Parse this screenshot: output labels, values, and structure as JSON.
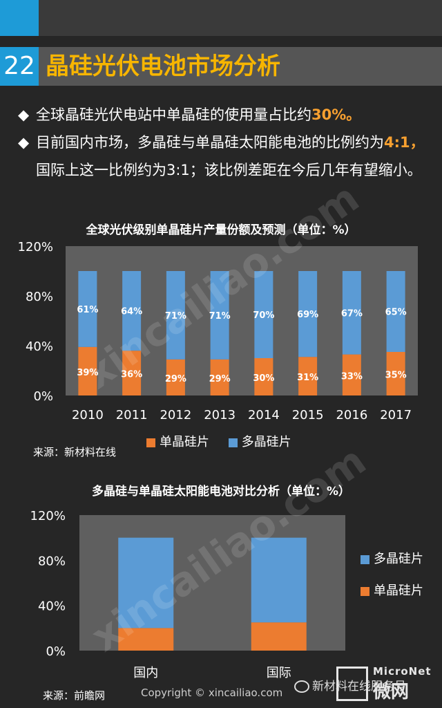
{
  "header": {
    "page_number": "22",
    "title": "晶硅光伏电池市场分析"
  },
  "bullets": {
    "b1_text": "全球晶硅光伏电站中单晶硅的使用量占比约",
    "b1_highlight": "30%。",
    "b2_text_a": "目前国内市场，多晶硅与单晶硅太阳能电池的比例约为",
    "b2_highlight": "4:1，",
    "b2_text_b": "国际上这一比例约为3:1；该比例差距在今后几年有望缩小。",
    "diamond": "◆"
  },
  "colors": {
    "mono": "#ec7c30",
    "poly": "#5b9bd5",
    "plot_bg": "#5f5f5f"
  },
  "chart_data": [
    {
      "type": "bar",
      "stacked": true,
      "title": "全球光伏级别单晶硅片产量份额及预测（单位：%）",
      "categories": [
        "2010",
        "2011",
        "2012",
        "2013",
        "2014",
        "2015",
        "2016",
        "2017"
      ],
      "series": [
        {
          "name": "单晶硅片",
          "values": [
            39,
            36,
            29,
            29,
            30,
            31,
            33,
            35
          ],
          "labels": [
            "39%",
            "36%",
            "29%",
            "29%",
            "30%",
            "31%",
            "33%",
            "35%"
          ]
        },
        {
          "name": "多晶硅片",
          "values": [
            61,
            64,
            71,
            71,
            70,
            69,
            67,
            65
          ],
          "labels": [
            "61%",
            "64%",
            "71%",
            "71%",
            "70%",
            "69%",
            "67%",
            "65%"
          ]
        }
      ],
      "ylim": [
        0,
        120
      ],
      "yticks": [
        "0%",
        "40%",
        "80%",
        "120%"
      ],
      "legend_position": "bottom"
    },
    {
      "type": "bar",
      "stacked": true,
      "title": "多晶硅与单晶硅太阳能电池对比分析（单位：%）",
      "categories": [
        "国内",
        "国际"
      ],
      "series": [
        {
          "name": "单晶硅片",
          "values": [
            20,
            25
          ]
        },
        {
          "name": "多晶硅片",
          "values": [
            80,
            75
          ]
        }
      ],
      "ylim": [
        0,
        120
      ],
      "yticks": [
        "0%",
        "40%",
        "80%",
        "120%"
      ],
      "legend_order": [
        "多晶硅片",
        "单晶硅片"
      ],
      "legend_position": "right"
    }
  ],
  "sources": {
    "s1": "来源：新材料在线",
    "s2": "来源：前瞻网"
  },
  "watermark": {
    "text": "xincailiao.com"
  },
  "footer": {
    "copyright": "Copyright © xincailiao.com",
    "wechat": "新材料在线服务号",
    "brand_top": "MicroNet",
    "brand_bottom": "微网"
  }
}
